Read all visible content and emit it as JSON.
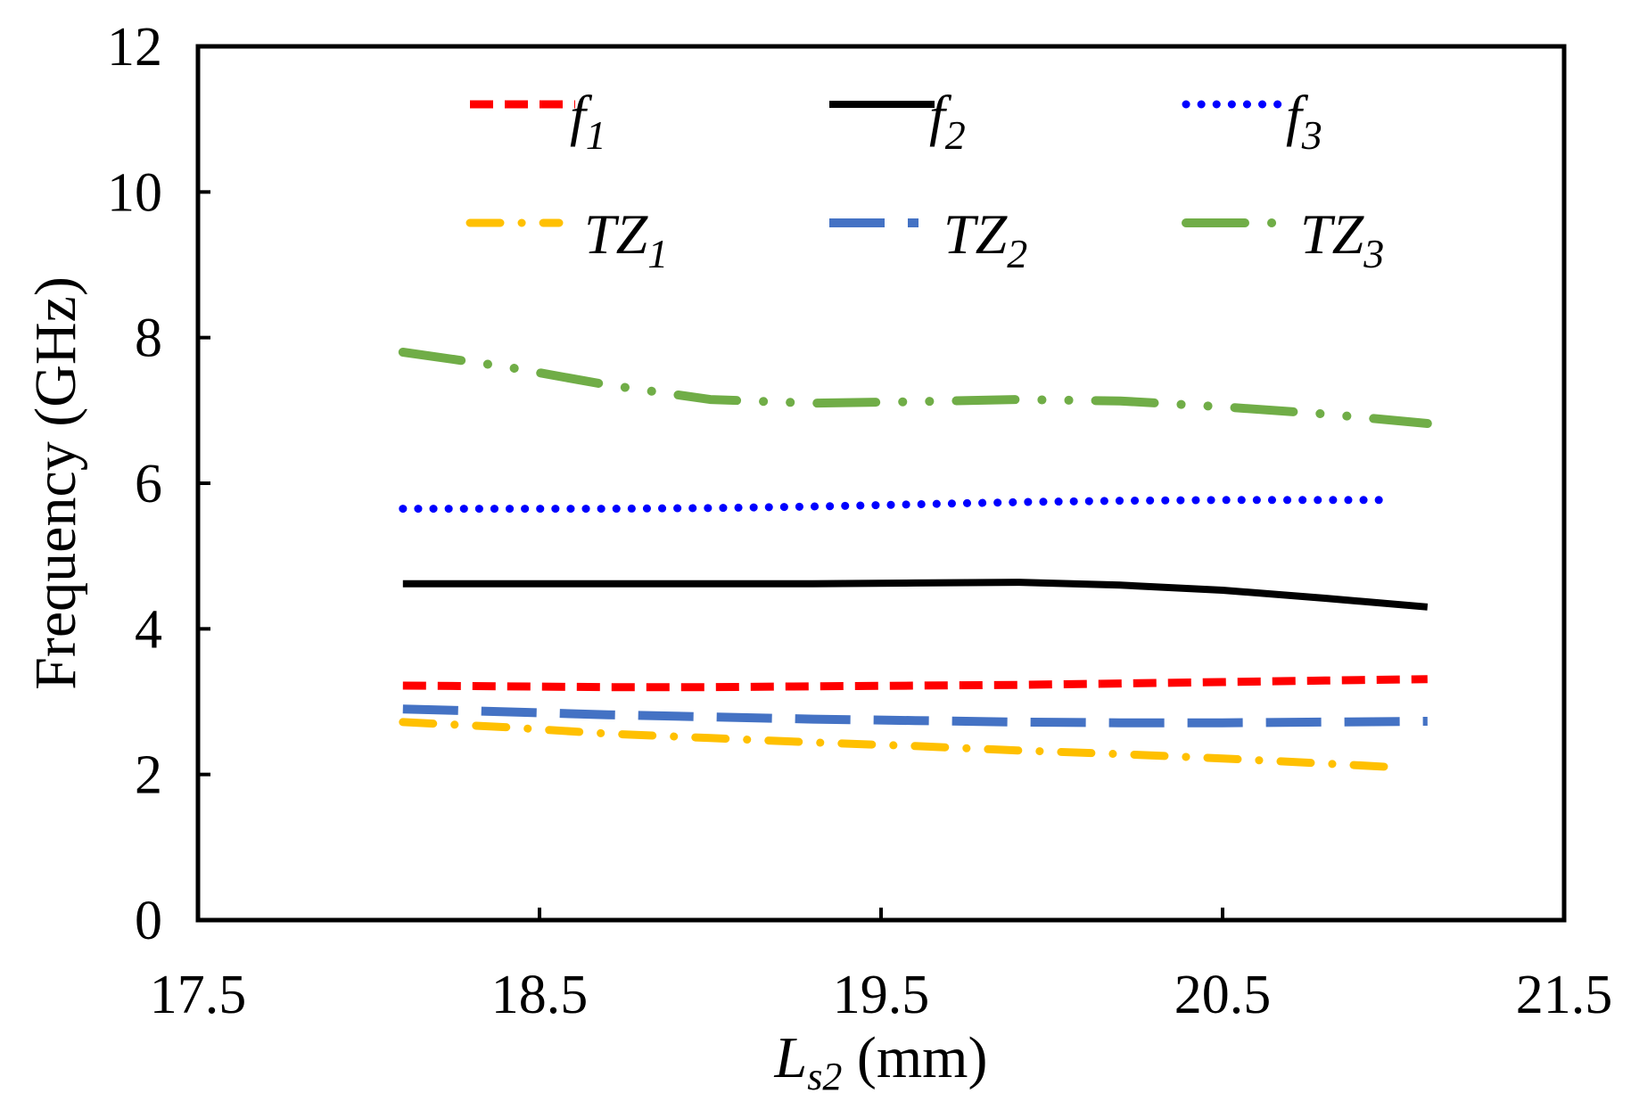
{
  "chart_data": {
    "type": "line",
    "title": "",
    "xlabel": {
      "main": "L",
      "sub": "s2",
      "unit": " (mm)"
    },
    "ylabel": "Frequency (GHz)",
    "xlim": [
      17.5,
      21.5
    ],
    "ylim": [
      0,
      12
    ],
    "xticks": [
      "17.5",
      "18.5",
      "19.5",
      "20.5",
      "21.5"
    ],
    "yticks": [
      "0",
      "2",
      "4",
      "6",
      "8",
      "10",
      "12"
    ],
    "xtick_values": [
      17.5,
      18.5,
      19.5,
      20.5,
      21.5
    ],
    "ytick_values": [
      0,
      2,
      4,
      6,
      8,
      10,
      12
    ],
    "grid": false,
    "legend_position": "top",
    "series": [
      {
        "key": "f1",
        "name": "f",
        "sub": "1",
        "color": "#ff0000",
        "style": "dash",
        "x": [
          18.1,
          18.4,
          18.7,
          19.0,
          19.3,
          19.6,
          19.9,
          20.2,
          20.5,
          20.8,
          21.1
        ],
        "y": [
          3.22,
          3.21,
          3.2,
          3.2,
          3.21,
          3.22,
          3.23,
          3.25,
          3.27,
          3.29,
          3.31
        ]
      },
      {
        "key": "f2",
        "name": "f",
        "sub": "2",
        "color": "#000000",
        "style": "solid",
        "x": [
          18.1,
          18.4,
          18.7,
          19.0,
          19.3,
          19.6,
          19.9,
          20.2,
          20.5,
          20.8,
          21.1
        ],
        "y": [
          4.62,
          4.62,
          4.62,
          4.62,
          4.62,
          4.63,
          4.64,
          4.6,
          4.53,
          4.42,
          4.3
        ]
      },
      {
        "key": "f3",
        "name": "f",
        "sub": "3",
        "color": "#0000ff",
        "style": "dot",
        "x": [
          18.1,
          18.4,
          18.7,
          19.0,
          19.3,
          19.6,
          19.9,
          20.2,
          20.5,
          20.8,
          21.0
        ],
        "y": [
          5.65,
          5.65,
          5.65,
          5.66,
          5.68,
          5.71,
          5.74,
          5.76,
          5.77,
          5.77,
          5.77
        ]
      },
      {
        "key": "TZ1",
        "name": "TZ",
        "sub": "1",
        "color": "#ffc000",
        "style": "dashdot",
        "x": [
          18.1,
          18.4,
          18.7,
          19.0,
          19.3,
          19.6,
          19.9,
          20.2,
          20.5,
          20.8,
          21.0
        ],
        "y": [
          2.72,
          2.65,
          2.56,
          2.5,
          2.44,
          2.39,
          2.33,
          2.28,
          2.22,
          2.15,
          2.1
        ]
      },
      {
        "key": "TZ2",
        "name": "TZ",
        "sub": "2",
        "color": "#4472c4",
        "style": "longdash",
        "x": [
          18.1,
          18.4,
          18.7,
          19.0,
          19.3,
          19.6,
          19.9,
          20.2,
          20.5,
          20.8,
          21.1
        ],
        "y": [
          2.9,
          2.86,
          2.82,
          2.79,
          2.76,
          2.74,
          2.72,
          2.71,
          2.71,
          2.72,
          2.73
        ]
      },
      {
        "key": "TZ3",
        "name": "TZ",
        "sub": "3",
        "color": "#70ad47",
        "style": "longdashdotdot",
        "x": [
          18.1,
          18.4,
          18.7,
          19.0,
          19.3,
          19.6,
          19.9,
          20.2,
          20.5,
          20.8,
          21.1
        ],
        "y": [
          7.8,
          7.6,
          7.35,
          7.15,
          7.1,
          7.12,
          7.15,
          7.13,
          7.05,
          6.95,
          6.82
        ]
      }
    ]
  }
}
